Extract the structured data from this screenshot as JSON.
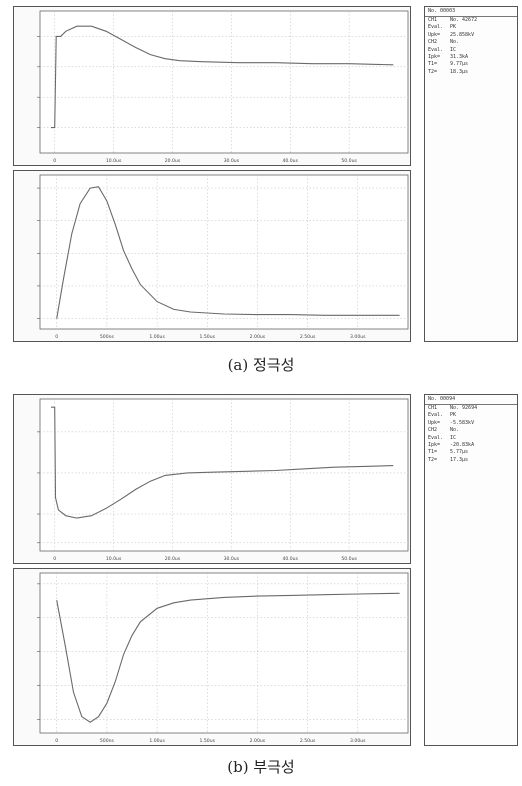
{
  "panels": [
    {
      "caption": "(a) 정극성",
      "info": {
        "header": "No. 00003",
        "rows": [
          {
            "k": "CH1",
            "v": "No. 42672"
          },
          {
            "k": "Eval.",
            "v": "PK"
          },
          {
            "k": "Upk=",
            "v": "25.858kV"
          },
          {
            "k": "CH2",
            "v": "No."
          },
          {
            "k": "Eval.",
            "v": "IC"
          },
          {
            "k": "Ipk=",
            "v": "31.3kA"
          },
          {
            "k": "T1=",
            "v": "9.77μs"
          },
          {
            "k": "T2=",
            "v": "18.3μs"
          }
        ]
      }
    },
    {
      "caption": "(b) 부극성",
      "info": {
        "header": "No. 00094",
        "rows": [
          {
            "k": "CH1",
            "v": "No. 92694"
          },
          {
            "k": "Eval.",
            "v": "PK"
          },
          {
            "k": "Upk=",
            "v": "-5.583kV"
          },
          {
            "k": "CH2",
            "v": "No."
          },
          {
            "k": "Eval.",
            "v": "IC"
          },
          {
            "k": "Ipk=",
            "v": "-20.83kA"
          },
          {
            "k": "T1=",
            "v": "5.77μs"
          },
          {
            "k": "T2=",
            "v": "17.3μs"
          }
        ]
      }
    }
  ],
  "chart_data": [
    {
      "type": "line",
      "panel": "a-voltage",
      "xlim": [
        -2,
        48
      ],
      "ylim": [
        -0.25,
        1.15
      ],
      "x_ticks": [
        "0",
        "10.0us",
        "20.0us",
        "30.0us",
        "40.0us",
        "50.0us"
      ],
      "x_tick_values": [
        0,
        8,
        16,
        24,
        32,
        40
      ],
      "y_ticks": [
        "",
        "",
        "",
        ""
      ],
      "y_tick_values": [
        0,
        0.3,
        0.6,
        0.9
      ],
      "points": [
        [
          -0.5,
          0
        ],
        [
          0,
          0
        ],
        [
          0.2,
          0.9
        ],
        [
          0.8,
          0.9
        ],
        [
          1.5,
          0.95
        ],
        [
          3,
          1.0
        ],
        [
          5,
          1.0
        ],
        [
          7,
          0.95
        ],
        [
          9,
          0.87
        ],
        [
          11,
          0.79
        ],
        [
          13,
          0.72
        ],
        [
          15,
          0.68
        ],
        [
          17,
          0.66
        ],
        [
          20,
          0.65
        ],
        [
          25,
          0.64
        ],
        [
          30,
          0.64
        ],
        [
          35,
          0.63
        ],
        [
          40,
          0.63
        ],
        [
          46,
          0.62
        ]
      ]
    },
    {
      "type": "line",
      "panel": "a-current",
      "xlim": [
        -1,
        21
      ],
      "ylim": [
        -0.08,
        1.1
      ],
      "x_ticks": [
        "0",
        "500ns",
        "1.00us",
        "1.50us",
        "2.00us",
        "2.50us",
        "3.00us"
      ],
      "x_tick_values": [
        0,
        3,
        6,
        9,
        12,
        15,
        18
      ],
      "y_ticks": [
        "",
        "",
        "",
        "",
        ""
      ],
      "y_tick_values": [
        0,
        0.25,
        0.5,
        0.75,
        1.0
      ],
      "points": [
        [
          0,
          0
        ],
        [
          0.4,
          0.3
        ],
        [
          0.9,
          0.65
        ],
        [
          1.4,
          0.88
        ],
        [
          2,
          1.0
        ],
        [
          2.5,
          1.01
        ],
        [
          3,
          0.9
        ],
        [
          3.5,
          0.72
        ],
        [
          4,
          0.52
        ],
        [
          4.5,
          0.38
        ],
        [
          5,
          0.26
        ],
        [
          6,
          0.13
        ],
        [
          7,
          0.07
        ],
        [
          8,
          0.05
        ],
        [
          10,
          0.035
        ],
        [
          12,
          0.03
        ],
        [
          14,
          0.03
        ],
        [
          16,
          0.025
        ],
        [
          18,
          0.025
        ],
        [
          20.5,
          0.025
        ]
      ]
    },
    {
      "type": "line",
      "panel": "b-voltage",
      "xlim": [
        -2,
        48
      ],
      "ylim": [
        -0.95,
        0.9
      ],
      "x_ticks": [
        "0",
        "10.0us",
        "20.0us",
        "30.0us",
        "40.0us",
        "50.0us"
      ],
      "x_tick_values": [
        0,
        8,
        16,
        24,
        32,
        40
      ],
      "y_ticks": [
        "",
        "",
        "",
        ""
      ],
      "y_tick_values": [
        0.5,
        0,
        -0.5,
        -0.85
      ],
      "points": [
        [
          -0.5,
          0.8
        ],
        [
          0,
          0.8
        ],
        [
          0.1,
          -0.3
        ],
        [
          0.5,
          -0.45
        ],
        [
          1.5,
          -0.52
        ],
        [
          3,
          -0.55
        ],
        [
          5,
          -0.52
        ],
        [
          7,
          -0.43
        ],
        [
          9,
          -0.32
        ],
        [
          11,
          -0.2
        ],
        [
          13,
          -0.1
        ],
        [
          15,
          -0.03
        ],
        [
          18,
          0
        ],
        [
          22,
          0.01
        ],
        [
          26,
          0.02
        ],
        [
          30,
          0.03
        ],
        [
          34,
          0.05
        ],
        [
          38,
          0.07
        ],
        [
          42,
          0.08
        ],
        [
          46,
          0.09
        ]
      ]
    },
    {
      "type": "line",
      "panel": "b-current",
      "xlim": [
        -1,
        21
      ],
      "ylim": [
        -1.1,
        0.08
      ],
      "x_ticks": [
        "0",
        "500ns",
        "1.00us",
        "1.50us",
        "2.00us",
        "2.50us",
        "3.00us"
      ],
      "x_tick_values": [
        0,
        3,
        6,
        9,
        12,
        15,
        18
      ],
      "y_ticks": [
        "",
        "",
        "",
        "",
        ""
      ],
      "y_tick_values": [
        0,
        -0.25,
        -0.5,
        -0.75,
        -1.0
      ],
      "points": [
        [
          0,
          -0.12
        ],
        [
          0.5,
          -0.45
        ],
        [
          1,
          -0.8
        ],
        [
          1.5,
          -0.98
        ],
        [
          2,
          -1.02
        ],
        [
          2.5,
          -0.98
        ],
        [
          3,
          -0.88
        ],
        [
          3.5,
          -0.72
        ],
        [
          4,
          -0.52
        ],
        [
          4.5,
          -0.38
        ],
        [
          5,
          -0.28
        ],
        [
          6,
          -0.18
        ],
        [
          7,
          -0.14
        ],
        [
          8,
          -0.12
        ],
        [
          10,
          -0.1
        ],
        [
          12,
          -0.09
        ],
        [
          14,
          -0.085
        ],
        [
          16,
          -0.08
        ],
        [
          18,
          -0.075
        ],
        [
          20.5,
          -0.07
        ]
      ]
    }
  ]
}
